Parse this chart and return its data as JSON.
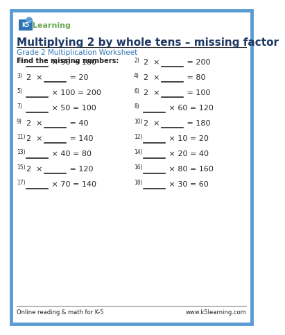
{
  "title": "Multiplying 2 by whole tens – missing factor",
  "subtitle": "Grade 2 Multiplication Worksheet",
  "instruction": "Find the missing numbers:",
  "footer_left": "Online reading & math for K-5",
  "footer_right": "www.k5learning.com",
  "border_color": "#5b9bd5",
  "title_color": "#1f3864",
  "subtitle_color": "#2e74b5",
  "text_color": "#222222",
  "background": "#ffffff",
  "rows": [
    {
      "left_num": "1)",
      "left_text_parts": [
        "_______",
        " × 90 = 180"
      ],
      "left_blank_first": true,
      "right_num": "2)",
      "right_text_parts": [
        "2  × ",
        "_______",
        " = 200"
      ],
      "right_blank_first": false
    },
    {
      "left_num": "3)",
      "left_text_parts": [
        "2  × ",
        "_______",
        " = 20"
      ],
      "left_blank_first": false,
      "right_num": "4)",
      "right_text_parts": [
        "2  × ",
        "_______",
        " = 80"
      ],
      "right_blank_first": false
    },
    {
      "left_num": "5)",
      "left_text_parts": [
        "_______",
        " × 100 = 200"
      ],
      "left_blank_first": true,
      "right_num": "6)",
      "right_text_parts": [
        "2  × ",
        "_______",
        " = 100"
      ],
      "right_blank_first": false
    },
    {
      "left_num": "7)",
      "left_text_parts": [
        "_______",
        " × 50 = 100"
      ],
      "left_blank_first": true,
      "right_num": "8)",
      "right_text_parts": [
        "_______",
        " × 60 = 120"
      ],
      "right_blank_first": true
    },
    {
      "left_num": "9)",
      "left_text_parts": [
        "2  × ",
        "_______",
        " = 40"
      ],
      "left_blank_first": false,
      "right_num": "10)",
      "right_text_parts": [
        "2  × ",
        "_______",
        " = 180"
      ],
      "right_blank_first": false
    },
    {
      "left_num": "11)",
      "left_text_parts": [
        "2  × ",
        "_______",
        " = 140"
      ],
      "left_blank_first": false,
      "right_num": "12)",
      "right_text_parts": [
        "_______",
        " × 10 = 20"
      ],
      "right_blank_first": true
    },
    {
      "left_num": "13)",
      "left_text_parts": [
        "_______",
        " × 40 = 80"
      ],
      "left_blank_first": true,
      "right_num": "14)",
      "right_text_parts": [
        "_______",
        " × 20 = 40"
      ],
      "right_blank_first": true
    },
    {
      "left_num": "15)",
      "left_text_parts": [
        "2  × ",
        "_______",
        " = 120"
      ],
      "left_blank_first": false,
      "right_num": "16)",
      "right_text_parts": [
        "_______",
        " × 80 = 160"
      ],
      "right_blank_first": true
    },
    {
      "left_num": "17)",
      "left_text_parts": [
        "_______",
        " × 70 = 140"
      ],
      "left_blank_first": true,
      "right_num": "18)",
      "right_text_parts": [
        "_______",
        " × 30 = 60"
      ],
      "right_blank_first": true
    }
  ]
}
